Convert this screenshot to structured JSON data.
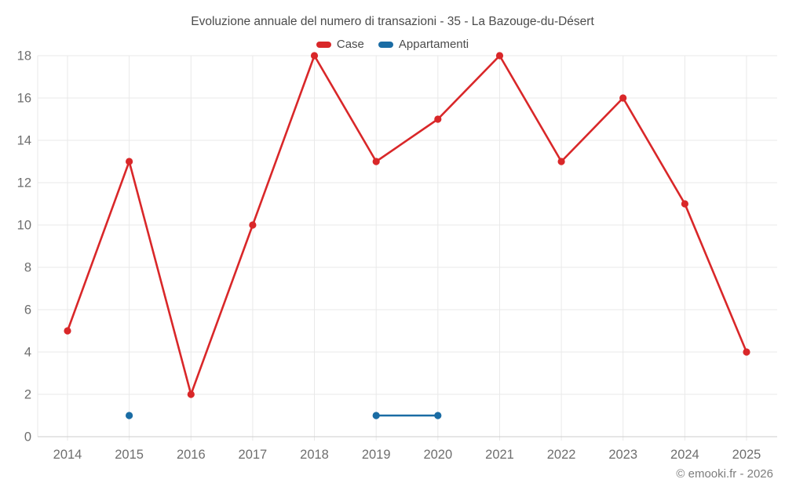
{
  "title": "Evoluzione annuale del numero di transazioni - 35 - La Bazouge-du-Désert",
  "legend": [
    {
      "label": "Case",
      "color": "#d92729"
    },
    {
      "label": "Appartamenti",
      "color": "#1a6ca4"
    }
  ],
  "footer": "© emooki.fr - 2026",
  "colors": {
    "case_red": "#d92729",
    "appartamenti_blue": "#1a6ca4",
    "grid": "#e9e9e9",
    "axis": "#cccccc",
    "tick_text": "#6e6e6e",
    "title_text": "#4b4b4b",
    "footer_text": "#7d7d7d"
  },
  "chart_data": {
    "type": "line",
    "title": "Evoluzione annuale del numero di transazioni - 35 - La Bazouge-du-Désert",
    "x": [
      2014,
      2015,
      2016,
      2017,
      2018,
      2019,
      2020,
      2021,
      2022,
      2023,
      2024,
      2025
    ],
    "series": [
      {
        "name": "Case",
        "color": "#d92729",
        "values": [
          5,
          13,
          2,
          10,
          18,
          13,
          15,
          18,
          13,
          16,
          11,
          4
        ]
      },
      {
        "name": "Appartamenti",
        "color": "#1a6ca4",
        "values": [
          null,
          1,
          null,
          null,
          null,
          1,
          1,
          null,
          null,
          null,
          null,
          null
        ]
      }
    ],
    "xlabel": "",
    "ylabel": "",
    "ylim": [
      0,
      18
    ],
    "ytick_step": 2,
    "grid": true,
    "legend_position": "top"
  }
}
